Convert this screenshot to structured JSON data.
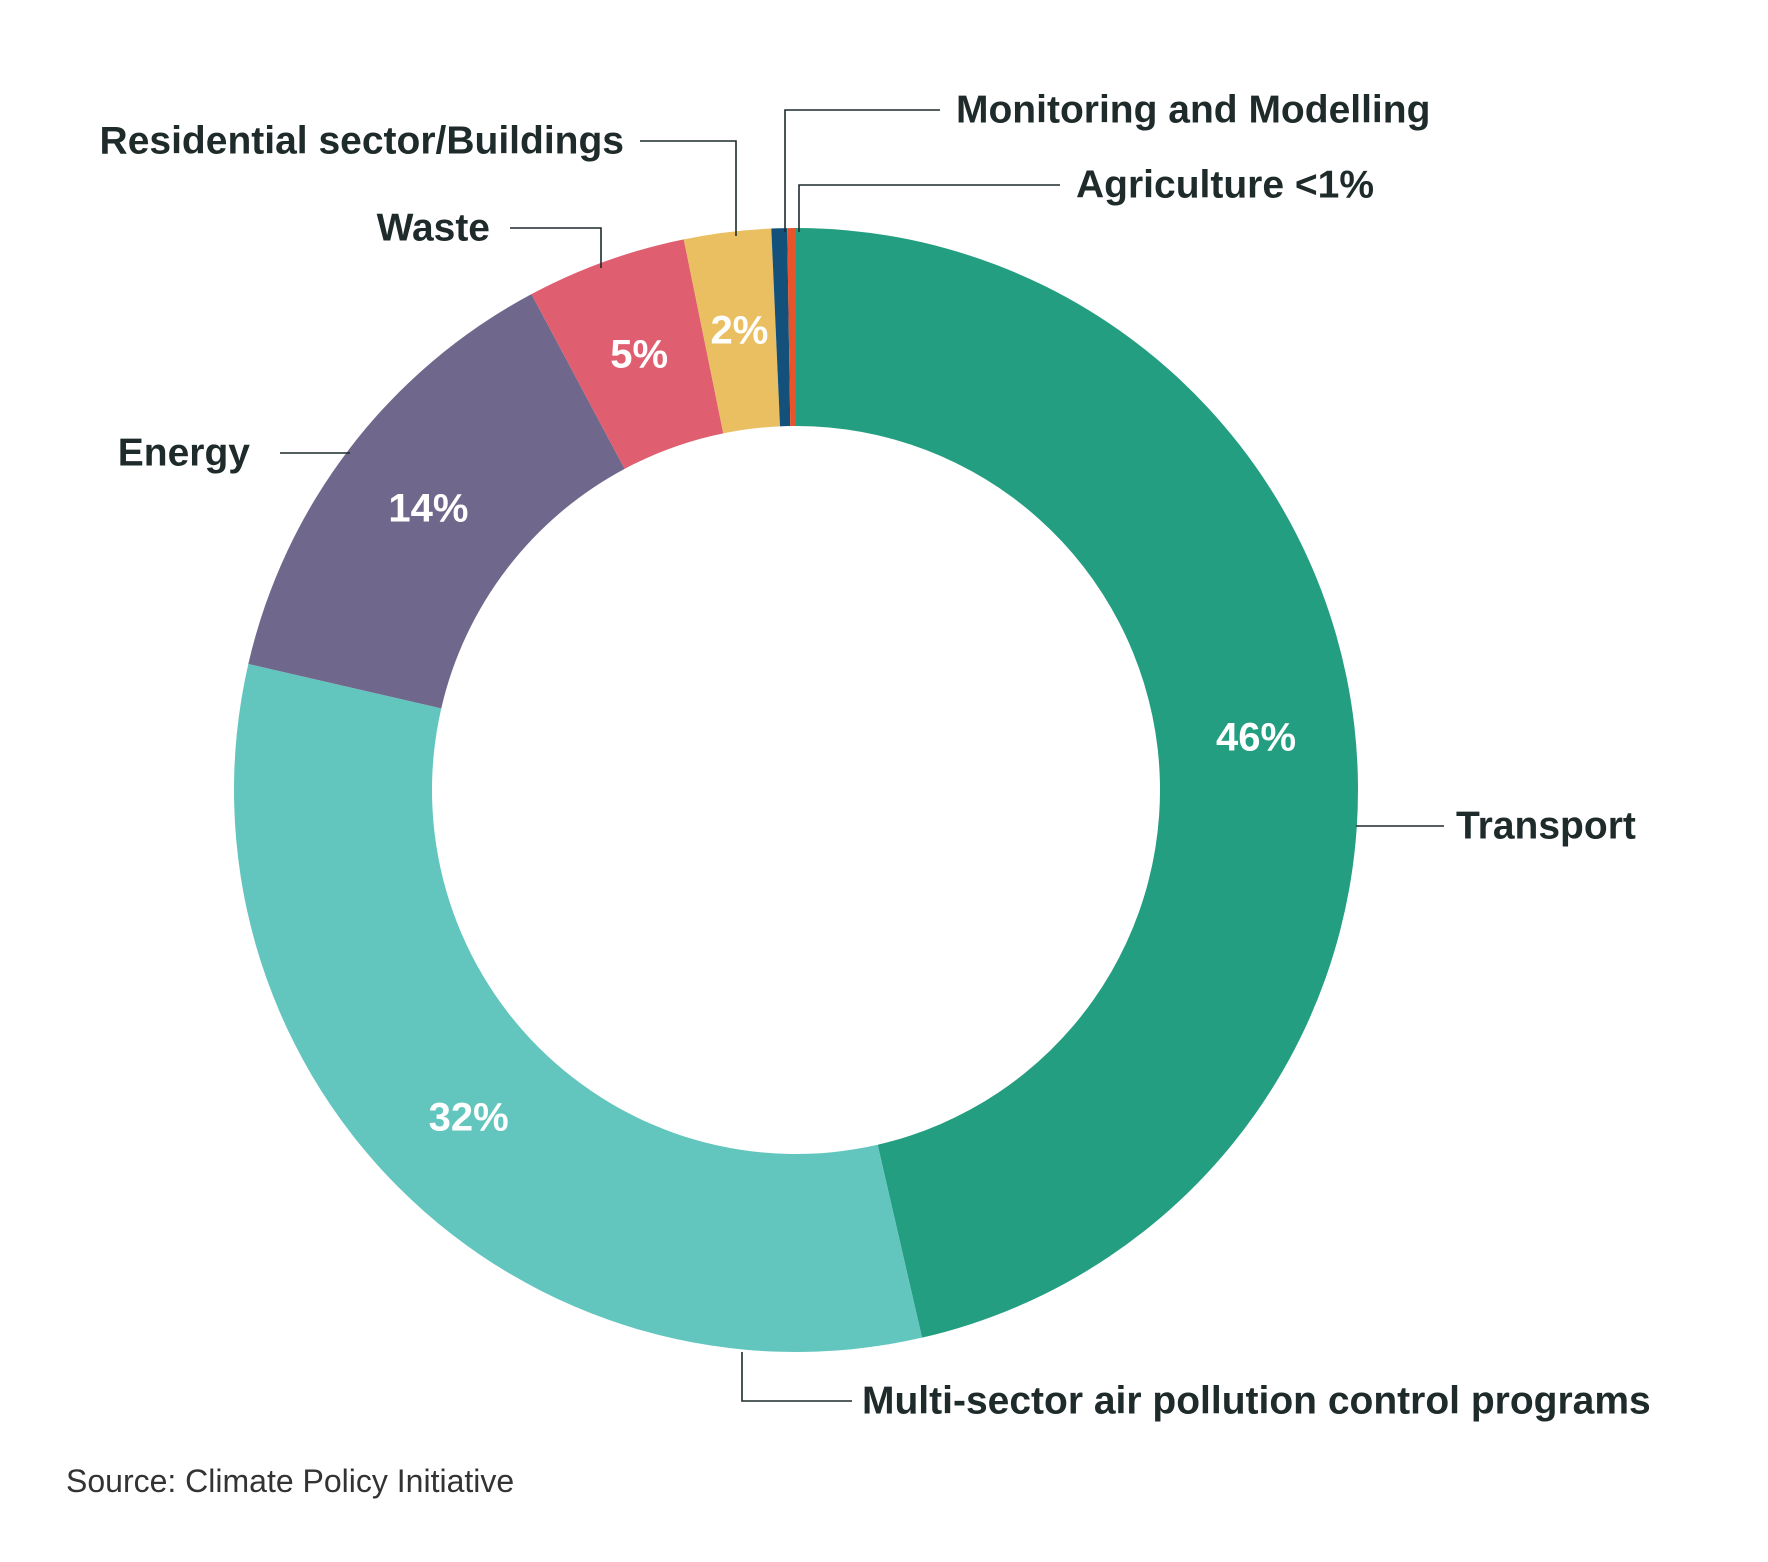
{
  "chart_data": {
    "type": "pie",
    "donut": true,
    "start_angle_deg": 0,
    "direction": "clockwise",
    "slices": [
      {
        "name": "Transport",
        "value": 46.4,
        "pct_label": "46%",
        "color": "#249e80"
      },
      {
        "name": "Multi-sector air pollution control programs",
        "value": 32.2,
        "pct_label": "32%",
        "color": "#63c6be"
      },
      {
        "name": "Energy",
        "value": 13.6,
        "pct_label": "14%",
        "color": "#70688c"
      },
      {
        "name": "Waste",
        "value": 4.6,
        "pct_label": "5%",
        "color": "#df5e6f"
      },
      {
        "name": "Residential sector/Buildings",
        "value": 2.5,
        "pct_label": "2%",
        "color": "#eabf62"
      },
      {
        "name": "Monitoring and Modelling",
        "value": 0.45,
        "pct_label": "",
        "color": "#14517a"
      },
      {
        "name": "Agriculture",
        "value": 0.25,
        "pct_label": "",
        "color": "#e8542a"
      }
    ],
    "callouts": [
      {
        "slice": 0,
        "text": "Transport"
      },
      {
        "slice": 1,
        "text": "Multi-sector air pollution control programs"
      },
      {
        "slice": 2,
        "text": "Energy"
      },
      {
        "slice": 3,
        "text": "Waste"
      },
      {
        "slice": 4,
        "text": "Residential sector/Buildings"
      },
      {
        "slice": 5,
        "text": "Monitoring and Modelling"
      },
      {
        "slice": 6,
        "text": "Agriculture <1%"
      }
    ]
  },
  "source": "Source: Climate Policy Initiative"
}
